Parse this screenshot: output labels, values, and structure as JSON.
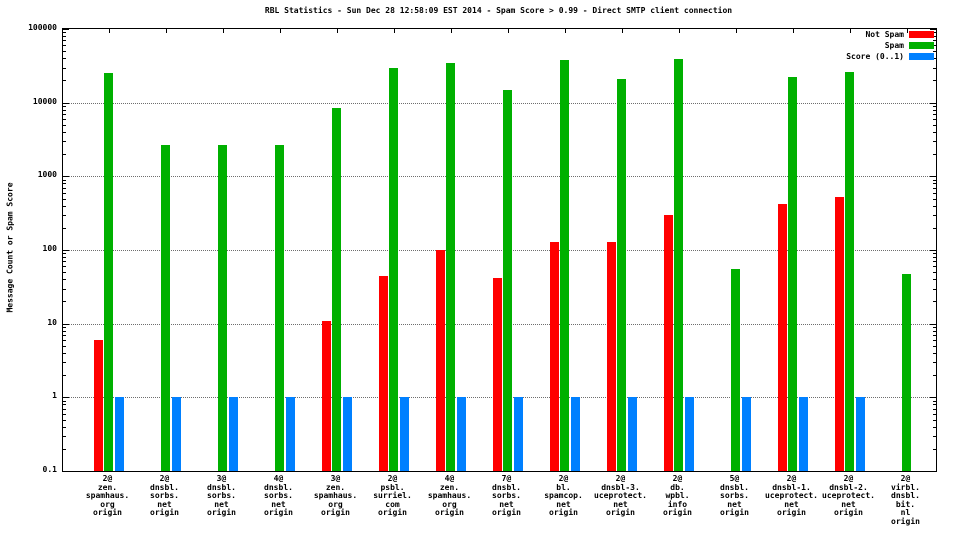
{
  "chart_data": {
    "type": "bar",
    "title": "RBL Statistics - Sun Dec 28 12:58:09 EST 2014 - Spam Score > 0.99 - Direct SMTP client connection",
    "ylabel": "Message Count or Spam Score",
    "y_scale": "log",
    "ylim": [
      0.1,
      100000
    ],
    "y_ticks": [
      0.1,
      1,
      10,
      100,
      1000,
      10000,
      100000
    ],
    "grid": true,
    "legend_position": "top-right",
    "categories": [
      [
        "2@",
        "zen.",
        "spamhaus.",
        "org",
        "origin"
      ],
      [
        "2@",
        "dnsbl.",
        "sorbs.",
        "net",
        "origin"
      ],
      [
        "3@",
        "dnsbl.",
        "sorbs.",
        "net",
        "origin"
      ],
      [
        "4@",
        "dnsbl.",
        "sorbs.",
        "net",
        "origin"
      ],
      [
        "3@",
        "zen.",
        "spamhaus.",
        "org",
        "origin"
      ],
      [
        "2@",
        "psbl.",
        "surriel.",
        "com",
        "origin"
      ],
      [
        "4@",
        "zen.",
        "spamhaus.",
        "org",
        "origin"
      ],
      [
        "7@",
        "dnsbl.",
        "sorbs.",
        "net",
        "origin"
      ],
      [
        "2@",
        "bl.",
        "spamcop.",
        "net",
        "origin"
      ],
      [
        "2@",
        "dnsbl-3.",
        "uceprotect.",
        "net",
        "origin"
      ],
      [
        "2@",
        "db.",
        "wpbl.",
        "info",
        "origin"
      ],
      [
        "5@",
        "dnsbl.",
        "sorbs.",
        "net",
        "origin"
      ],
      [
        "2@",
        "dnsbl-1.",
        "uceprotect.",
        "net",
        "origin"
      ],
      [
        "2@",
        "dnsbl-2.",
        "uceprotect.",
        "net",
        "origin"
      ],
      [
        "2@",
        "virbl.",
        "dnsbl.",
        "bit.",
        "nl",
        "origin"
      ]
    ],
    "series": [
      {
        "name": "Not Spam",
        "color": "#ff0000",
        "values": [
          6,
          null,
          null,
          null,
          11,
          45,
          100,
          42,
          130,
          130,
          300,
          null,
          420,
          520,
          null
        ]
      },
      {
        "name": "Spam",
        "color": "#00b000",
        "values": [
          25000,
          2700,
          2700,
          2700,
          8500,
          30000,
          35000,
          15000,
          38000,
          21000,
          39000,
          55,
          22000,
          26000,
          47
        ]
      },
      {
        "name": "Score (0..1)",
        "color": "#0080ff",
        "values": [
          1,
          1,
          1,
          1,
          1,
          1,
          1,
          1,
          1,
          1,
          1,
          1,
          1,
          1,
          null
        ]
      }
    ]
  }
}
